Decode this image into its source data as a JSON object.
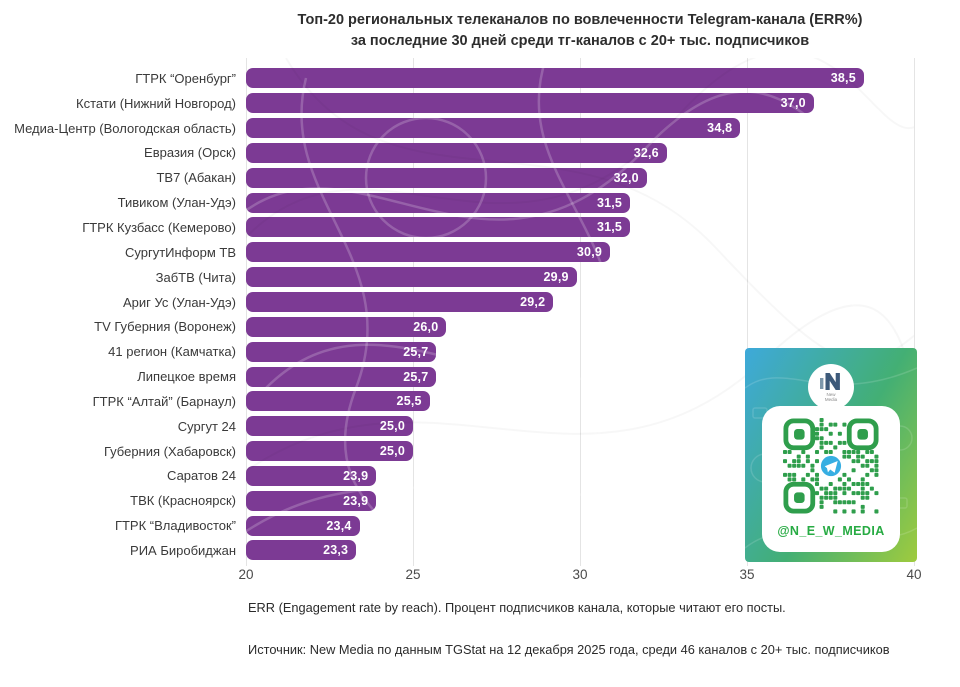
{
  "title": {
    "line1": "Топ-20 региональных телеканалов по вовлеченности Telegram-канала (ERR%)",
    "line2": "за последние 30 дней среди тг-каналов с 20+ тыс. подписчиков"
  },
  "chart_data": {
    "type": "bar",
    "orientation": "horizontal",
    "categories": [
      "ГТРК “Оренбург”",
      "Кстати (Нижний Новгород)",
      "Медиа-Центр (Вологодская область)",
      "Евразия (Орск)",
      "ТВ7 (Абакан)",
      "Тивиком (Улан-Удэ)",
      "ГТРК Кузбасс (Кемерово)",
      "СургутИнформ ТВ",
      "ЗабТВ (Чита)",
      "Ариг Ус (Улан-Удэ)",
      "TV Губерния (Воронеж)",
      "41 регион (Камчатка)",
      "Липецкое время",
      "ГТРК “Алтай” (Барнаул)",
      "Сургут 24",
      "Губерния (Хабаровск)",
      "Саратов 24",
      "ТВК (Красноярск)",
      "ГТРК “Владивосток”",
      "РИА Биробиджан"
    ],
    "values": [
      38.5,
      37.0,
      34.8,
      32.6,
      32.0,
      31.5,
      31.5,
      30.9,
      29.9,
      29.2,
      26.0,
      25.7,
      25.7,
      25.5,
      25.0,
      25.0,
      23.9,
      23.9,
      23.4,
      23.3
    ],
    "value_labels": [
      "38,5",
      "37,0",
      "34,8",
      "32,6",
      "32,0",
      "31,5",
      "31,5",
      "30,9",
      "29,9",
      "29,2",
      "26,0",
      "25,7",
      "25,7",
      "25,5",
      "25,0",
      "25,0",
      "23,9",
      "23,9",
      "23,4",
      "23,3"
    ],
    "xlim": [
      20,
      40
    ],
    "x_ticks": [
      "20",
      "25",
      "30",
      "35",
      "40"
    ],
    "bar_color": "#7c3a94",
    "grid": true,
    "legend": "none",
    "ylabel": "",
    "xlabel": ""
  },
  "footnotes": {
    "err_note": "ERR (Engagement rate by reach). Процент подписчиков канала, которые читают его посты.",
    "source": "Источник: New Media по данным TGStat на 12 декабря 2025 года, среди 46 каналов с 20+ тыс. подписчиков"
  },
  "badge": {
    "handle": "@N_E_W_MEDIA",
    "logo_letter": "N",
    "logo_caption_line1": "New",
    "logo_caption_line2": "Media",
    "accent_green": "#2f9e4c",
    "gradient_start": "#3ea9da",
    "gradient_end": "#9fcb3e"
  }
}
